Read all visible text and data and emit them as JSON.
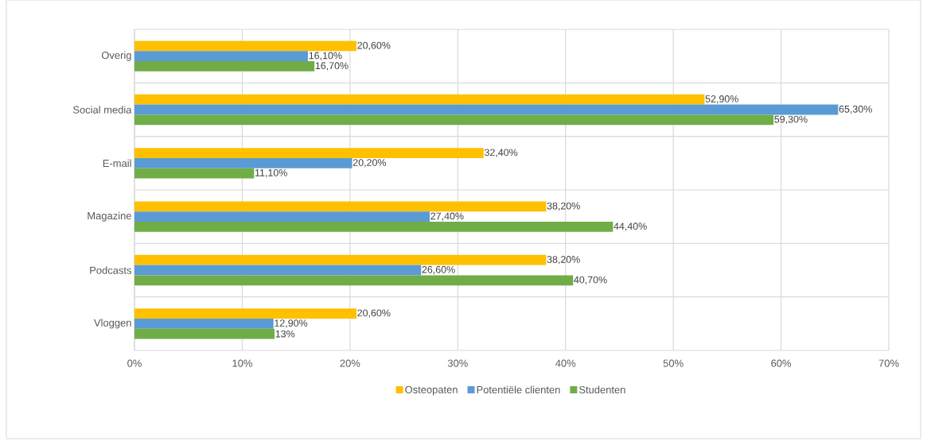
{
  "chart_data": {
    "type": "bar",
    "orientation": "horizontal",
    "categories": [
      "Overig",
      "Social media",
      "E-mail",
      "Magazine",
      "Podcasts",
      "Vloggen"
    ],
    "series": [
      {
        "name": "Osteopaten",
        "color": "#ffc000",
        "values": [
          20.6,
          52.9,
          32.4,
          38.2,
          38.2,
          20.6
        ],
        "value_labels": [
          "20,60%",
          "52,90%",
          "32,40%",
          "38,20%",
          "38,20%",
          "20,60%"
        ]
      },
      {
        "name": "Potentiële clienten",
        "color": "#5b9bd5",
        "values": [
          16.1,
          65.3,
          20.2,
          27.4,
          26.6,
          12.9
        ],
        "value_labels": [
          "16,10%",
          "65,30%",
          "20,20%",
          "27,40%",
          "26,60%",
          "12,90%"
        ]
      },
      {
        "name": "Studenten",
        "color": "#70ad47",
        "values": [
          16.7,
          59.3,
          11.1,
          44.4,
          40.7,
          13
        ],
        "value_labels": [
          "16,70%",
          "59,30%",
          "11,10%",
          "44,40%",
          "40,70%",
          "13%"
        ]
      }
    ],
    "xlim": [
      0,
      70
    ],
    "xticks": [
      {
        "value": 0,
        "label": "0%"
      },
      {
        "value": 10,
        "label": "10%"
      },
      {
        "value": 20,
        "label": "20%"
      },
      {
        "value": 30,
        "label": "30%"
      },
      {
        "value": 40,
        "label": "40%"
      },
      {
        "value": 50,
        "label": "50%"
      },
      {
        "value": 60,
        "label": "60%"
      },
      {
        "value": 70,
        "label": "70%"
      }
    ],
    "grid": true,
    "legend": "bottom"
  }
}
